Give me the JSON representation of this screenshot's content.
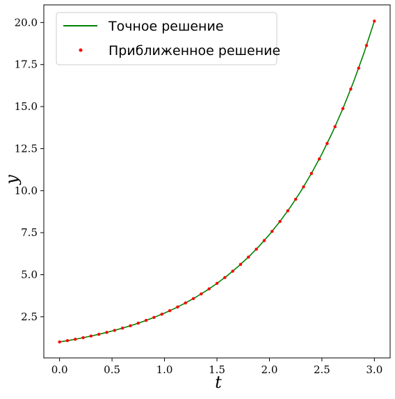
{
  "chart_data": {
    "type": "line",
    "title": "",
    "xlabel": "t",
    "ylabel": "y",
    "xlim": [
      -0.15,
      3.15
    ],
    "ylim": [
      0.05,
      21.05
    ],
    "xticks": [
      0.0,
      0.5,
      1.0,
      1.5,
      2.0,
      2.5,
      3.0
    ],
    "xtick_labels": [
      "0.0",
      "0.5",
      "1.0",
      "1.5",
      "2.0",
      "2.5",
      "3.0"
    ],
    "yticks": [
      2.5,
      5.0,
      7.5,
      10.0,
      12.5,
      15.0,
      17.5,
      20.0
    ],
    "ytick_labels": [
      "2.5",
      "5.0",
      "7.5",
      "10.0",
      "12.5",
      "15.0",
      "17.5",
      "20.0"
    ],
    "grid": false,
    "legend_position": "top-left",
    "series": [
      {
        "name": "Точное решение",
        "kind": "line",
        "color": "#008000",
        "x": [
          0,
          0.1,
          0.2,
          0.3,
          0.4,
          0.5,
          0.6,
          0.7,
          0.8,
          0.9,
          1.0,
          1.1,
          1.2,
          1.3,
          1.4,
          1.5,
          1.6,
          1.7,
          1.8,
          1.9,
          2.0,
          2.1,
          2.2,
          2.3,
          2.4,
          2.5,
          2.6,
          2.7,
          2.8,
          2.9,
          3.0
        ],
        "y": [
          1.0,
          1.105,
          1.221,
          1.35,
          1.492,
          1.649,
          1.822,
          2.014,
          2.226,
          2.46,
          2.718,
          3.004,
          3.32,
          3.669,
          4.055,
          4.482,
          4.953,
          5.474,
          6.05,
          6.686,
          7.389,
          8.166,
          9.025,
          9.974,
          11.023,
          12.182,
          13.464,
          14.88,
          16.445,
          18.174,
          20.086
        ]
      },
      {
        "name": "Приближенное решение",
        "kind": "scatter",
        "color": "#ff0000",
        "x": [
          0.0,
          0.075,
          0.15,
          0.225,
          0.3,
          0.375,
          0.45,
          0.525,
          0.6,
          0.675,
          0.75,
          0.825,
          0.9,
          0.975,
          1.05,
          1.125,
          1.2,
          1.275,
          1.35,
          1.425,
          1.5,
          1.575,
          1.65,
          1.725,
          1.8,
          1.875,
          1.95,
          2.025,
          2.1,
          2.175,
          2.25,
          2.325,
          2.4,
          2.475,
          2.55,
          2.625,
          2.7,
          2.775,
          2.85,
          2.925,
          3.0
        ],
        "y": [
          1.0,
          1.078,
          1.162,
          1.252,
          1.35,
          1.455,
          1.568,
          1.69,
          1.822,
          1.964,
          2.117,
          2.282,
          2.46,
          2.651,
          2.858,
          3.08,
          3.32,
          3.579,
          3.857,
          4.158,
          4.482,
          4.831,
          5.207,
          5.612,
          6.05,
          6.521,
          7.029,
          7.576,
          8.166,
          8.802,
          9.488,
          10.227,
          11.023,
          11.882,
          12.807,
          13.805,
          14.88,
          16.039,
          17.288,
          18.634,
          20.086
        ]
      }
    ]
  }
}
